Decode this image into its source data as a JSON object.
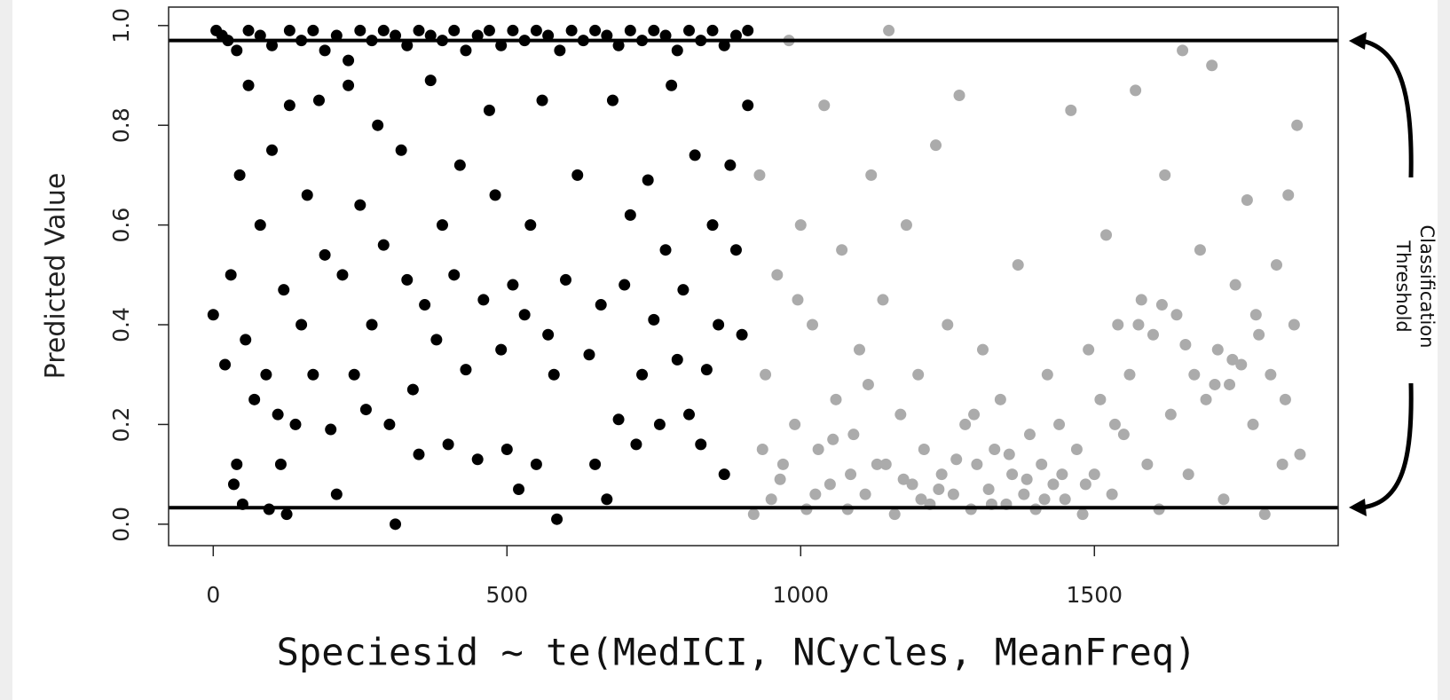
{
  "chart_data": {
    "type": "scatter",
    "ylabel": "Predicted Value",
    "xlabel": "Speciesid ~ te(MedICI, NCycles, MeanFreq)",
    "annotation": [
      "Classification",
      "Threshold"
    ],
    "xlim": [
      -76,
      1915
    ],
    "ylim": [
      -0.043,
      1.037
    ],
    "xticks": [
      0,
      500,
      1000,
      1500
    ],
    "yticks": [
      {
        "value": 0,
        "label": "0.0"
      },
      0.2,
      0.4,
      0.6,
      0.8,
      {
        "value": 1,
        "label": "1.0"
      }
    ],
    "reference_lines": [
      0.97,
      0.033
    ],
    "series": [
      {
        "color": "#000000",
        "x": [
          5,
          15,
          25,
          40,
          60,
          80,
          100,
          130,
          150,
          170,
          190,
          210,
          230,
          250,
          270,
          290,
          310,
          330,
          350,
          370,
          390,
          410,
          430,
          450,
          470,
          490,
          510,
          530,
          550,
          570,
          590,
          610,
          630,
          650,
          670,
          690,
          710,
          730,
          750,
          770,
          790,
          810,
          830,
          850,
          870,
          890,
          910,
          0,
          20,
          30,
          35,
          40,
          45,
          50,
          55,
          60,
          70,
          80,
          90,
          95,
          100,
          110,
          115,
          120,
          125,
          130,
          140,
          150,
          160,
          170,
          180,
          190,
          200,
          210,
          220,
          230,
          240,
          250,
          260,
          270,
          280,
          290,
          300,
          310,
          320,
          330,
          340,
          350,
          360,
          370,
          380,
          390,
          400,
          410,
          420,
          430,
          450,
          460,
          470,
          480,
          490,
          500,
          510,
          520,
          530,
          540,
          550,
          560,
          570,
          580,
          585,
          600,
          620,
          640,
          650,
          660,
          670,
          680,
          690,
          700,
          710,
          720,
          730,
          740,
          750,
          760,
          770,
          780,
          790,
          800,
          810,
          820,
          830,
          840,
          850,
          860,
          870,
          880,
          890,
          900,
          910
        ],
        "values": [
          0.99,
          0.98,
          0.97,
          0.95,
          0.99,
          0.98,
          0.96,
          0.99,
          0.97,
          0.99,
          0.95,
          0.98,
          0.93,
          0.99,
          0.97,
          0.99,
          0.98,
          0.96,
          0.99,
          0.98,
          0.97,
          0.99,
          0.95,
          0.98,
          0.99,
          0.96,
          0.99,
          0.97,
          0.99,
          0.98,
          0.95,
          0.99,
          0.97,
          0.99,
          0.98,
          0.96,
          0.99,
          0.97,
          0.99,
          0.98,
          0.95,
          0.99,
          0.97,
          0.99,
          0.96,
          0.98,
          0.99,
          0.42,
          0.32,
          0.5,
          0.08,
          0.12,
          0.7,
          0.04,
          0.37,
          0.88,
          0.25,
          0.6,
          0.3,
          0.03,
          0.75,
          0.22,
          0.12,
          0.47,
          0.02,
          0.84,
          0.2,
          0.4,
          0.66,
          0.3,
          0.85,
          0.54,
          0.19,
          0.06,
          0.5,
          0.88,
          0.3,
          0.64,
          0.23,
          0.4,
          0.8,
          0.56,
          0.2,
          0.0,
          0.75,
          0.49,
          0.27,
          0.14,
          0.44,
          0.89,
          0.37,
          0.6,
          0.16,
          0.5,
          0.72,
          0.31,
          0.13,
          0.45,
          0.83,
          0.66,
          0.35,
          0.15,
          0.48,
          0.07,
          0.42,
          0.6,
          0.12,
          0.85,
          0.38,
          0.3,
          0.01,
          0.49,
          0.7,
          0.34,
          0.12,
          0.44,
          0.05,
          0.85,
          0.21,
          0.48,
          0.62,
          0.16,
          0.3,
          0.69,
          0.41,
          0.2,
          0.55,
          0.88,
          0.33,
          0.47,
          0.22,
          0.74,
          0.16,
          0.31,
          0.6,
          0.4,
          0.1,
          0.72,
          0.55,
          0.38,
          0.84
        ]
      },
      {
        "color": "#ababab",
        "x": [
          920,
          930,
          940,
          950,
          960,
          970,
          980,
          990,
          1000,
          1010,
          1020,
          1030,
          1040,
          1050,
          1060,
          1070,
          1080,
          1090,
          1100,
          1110,
          1120,
          1130,
          1140,
          1150,
          1160,
          1170,
          1180,
          1190,
          1200,
          1210,
          1220,
          1230,
          1240,
          1250,
          1260,
          1270,
          1280,
          1290,
          1300,
          1310,
          1320,
          1330,
          1340,
          1350,
          1360,
          1370,
          1380,
          1390,
          1400,
          1410,
          1420,
          1430,
          1440,
          1450,
          1460,
          1470,
          1480,
          1490,
          1500,
          1510,
          1520,
          1530,
          1540,
          1550,
          1560,
          1570,
          1580,
          1590,
          1600,
          1610,
          1620,
          1630,
          1640,
          1650,
          1660,
          1670,
          1680,
          1690,
          1700,
          1710,
          1720,
          1730,
          1740,
          1750,
          1760,
          1770,
          1780,
          1790,
          1800,
          1810,
          1820,
          1830,
          1840,
          1850,
          1845,
          1825,
          1775,
          1735,
          1705,
          1655,
          1615,
          1575,
          1535,
          1485,
          1445,
          1415,
          1385,
          1355,
          1325,
          1295,
          1265,
          1235,
          1205,
          1175,
          1145,
          1115,
          1085,
          1055,
          1025,
          995,
          965,
          935
        ],
        "values": [
          0.02,
          0.7,
          0.3,
          0.05,
          0.5,
          0.12,
          0.97,
          0.2,
          0.6,
          0.03,
          0.4,
          0.15,
          0.84,
          0.08,
          0.25,
          0.55,
          0.03,
          0.18,
          0.35,
          0.06,
          0.7,
          0.12,
          0.45,
          0.99,
          0.02,
          0.22,
          0.6,
          0.08,
          0.3,
          0.15,
          0.04,
          0.76,
          0.1,
          0.4,
          0.06,
          0.86,
          0.2,
          0.03,
          0.12,
          0.35,
          0.07,
          0.15,
          0.25,
          0.04,
          0.1,
          0.52,
          0.06,
          0.18,
          0.03,
          0.12,
          0.3,
          0.08,
          0.2,
          0.05,
          0.83,
          0.15,
          0.02,
          0.35,
          0.1,
          0.25,
          0.58,
          0.06,
          0.4,
          0.18,
          0.3,
          0.87,
          0.45,
          0.12,
          0.38,
          0.03,
          0.7,
          0.22,
          0.42,
          0.95,
          0.1,
          0.3,
          0.55,
          0.25,
          0.92,
          0.35,
          0.05,
          0.28,
          0.48,
          0.32,
          0.65,
          0.2,
          0.38,
          0.02,
          0.3,
          0.52,
          0.12,
          0.66,
          0.4,
          0.14,
          0.8,
          0.25,
          0.42,
          0.33,
          0.28,
          0.36,
          0.44,
          0.4,
          0.2,
          0.08,
          0.1,
          0.05,
          0.09,
          0.14,
          0.04,
          0.22,
          0.13,
          0.07,
          0.05,
          0.09,
          0.12,
          0.28,
          0.1,
          0.17,
          0.06,
          0.45,
          0.09,
          0.15
        ]
      }
    ]
  }
}
